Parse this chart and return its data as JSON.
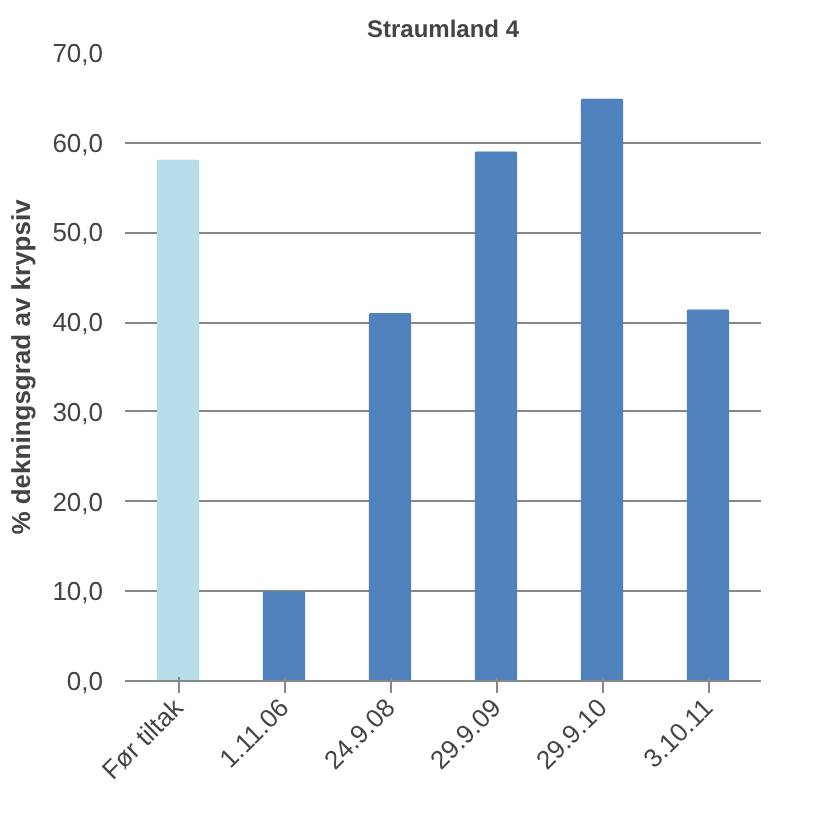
{
  "chart_data": {
    "type": "bar",
    "title": "Straumland 4",
    "ylabel": "% dekningsgrad av krypsiv",
    "categories": [
      "Før tiltak",
      "1.11.06",
      "24.9.08",
      "29.9.09",
      "29.9.10",
      "3.10.11"
    ],
    "values": [
      58.0,
      9.9,
      40.9,
      58.9,
      64.8,
      41.3
    ],
    "colors": [
      "#b7dde8",
      "#4f81bd",
      "#4f81bd",
      "#4f81bd",
      "#4f81bd",
      "#4f81bd"
    ],
    "ylim": [
      0,
      70
    ],
    "yticks": [
      {
        "value": 0,
        "label": "0,0"
      },
      {
        "value": 10,
        "label": "10,0"
      },
      {
        "value": 20,
        "label": "20,0"
      },
      {
        "value": 30,
        "label": "30,0"
      },
      {
        "value": 40,
        "label": "40,0"
      },
      {
        "value": 50,
        "label": "50,0"
      },
      {
        "value": 60,
        "label": "60,0"
      },
      {
        "value": 70,
        "label": "70,0"
      }
    ],
    "grid": "y"
  }
}
